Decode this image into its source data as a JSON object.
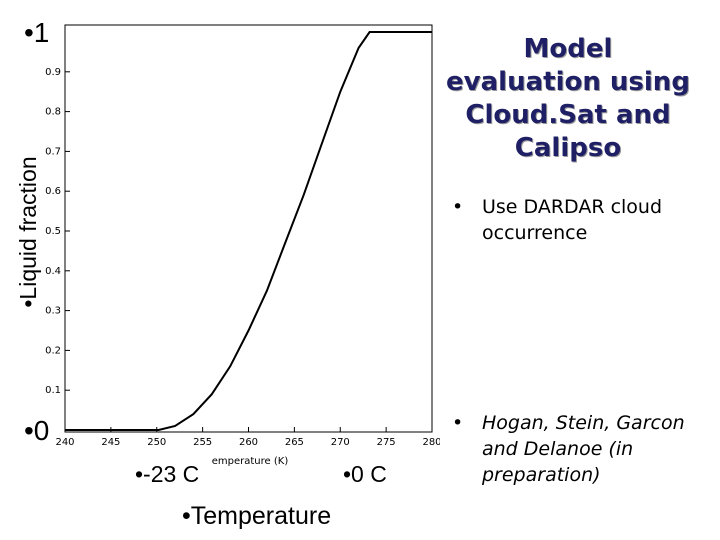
{
  "chart_data": {
    "type": "line",
    "xlabel": "emperature (K)",
    "ylabel": "Liquid fraction",
    "xlim": [
      240,
      280
    ],
    "ylim": [
      0,
      1
    ],
    "xticks": [
      240,
      245,
      250,
      255,
      260,
      265,
      270,
      275,
      280
    ],
    "xtick_labels": [
      "240",
      "245",
      "250",
      "255",
      "260",
      "265",
      "270",
      "275",
      "280"
    ],
    "yticks": [
      0.1,
      0.2,
      0.3,
      0.4,
      0.5,
      0.6,
      0.7,
      0.8,
      0.9
    ],
    "ytick_labels": [
      "0.1",
      "0.2",
      "0.3",
      "0.4",
      "0.5",
      "0.6",
      "0.7",
      "0.8",
      "0.9"
    ],
    "series": [
      {
        "x": [
          240,
          245,
          250,
          250.2,
          252,
          254,
          256,
          258,
          260,
          262,
          264,
          266,
          268,
          270,
          272,
          273.2,
          275,
          280
        ],
        "y": [
          0,
          0,
          0,
          0.0,
          0.01,
          0.04,
          0.09,
          0.16,
          0.25,
          0.35,
          0.47,
          0.59,
          0.72,
          0.85,
          0.96,
          1.0,
          1.0,
          1.0
        ]
      }
    ],
    "color": "#000000"
  },
  "annotations": {
    "top": "•1",
    "bottom": "•0",
    "ylabel_big": "•Liquid fraction",
    "minus23": "•-23 C",
    "zero": "•0 C",
    "temperature": "•Temperature"
  },
  "title": "Model evaluation using Cloud.Sat and Calipso",
  "bullets": [
    {
      "marker": "•",
      "text": "Use DARDAR cloud occurrence"
    },
    {
      "marker": "•",
      "text": "Hogan, Stein, Garcon and Delanoe (in preparation)"
    }
  ]
}
